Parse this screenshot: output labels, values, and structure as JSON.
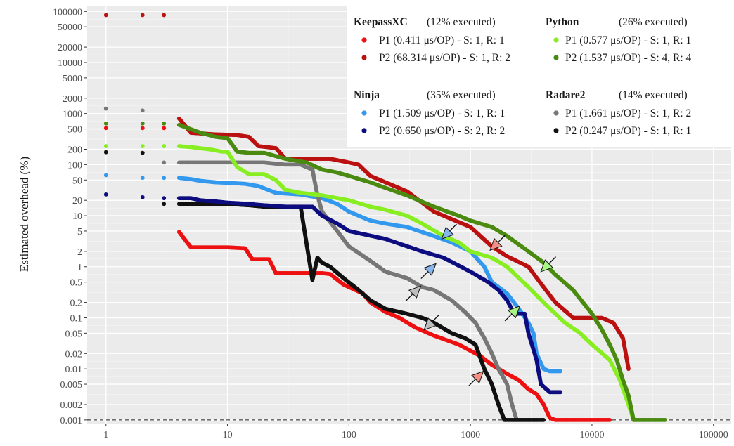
{
  "chart_data": {
    "type": "scatter",
    "title": "",
    "xlabel": "",
    "ylabel": "Estimated overhead (%)",
    "x_scale": "log",
    "y_scale": "log",
    "xlim": [
      0.7,
      140000
    ],
    "ylim": [
      0.00085,
      130000
    ],
    "grid": true,
    "legend_position": "top-right",
    "x_ticks": [
      1,
      10,
      100,
      1000,
      10000,
      100000
    ],
    "x_tick_labels": [
      "1",
      "10",
      "100",
      "1000",
      "10000",
      "100000"
    ],
    "y_ticks": [
      100000,
      50000,
      20000,
      10000,
      5000,
      2000,
      1000,
      500,
      200,
      100,
      50,
      20,
      10,
      5,
      2,
      1,
      0.5,
      0.2,
      0.1,
      0.05,
      0.02,
      0.01,
      0.005,
      0.002,
      0.001
    ],
    "y_tick_labels": [
      "100000",
      "50000",
      "20000",
      "10000",
      "5000",
      "2000",
      "1000",
      "500",
      "200",
      "100",
      "50",
      "20",
      "10",
      "5",
      "2",
      "1",
      "0.5",
      "0.2",
      "0.1",
      "0.05",
      "0.02",
      "0.01",
      "0.005",
      "0.002",
      "0.001"
    ],
    "reference_line": {
      "y": 0.001,
      "style": "dashed"
    },
    "groups": [
      {
        "title": "KeepassXC",
        "executed": "(12% executed)",
        "items": [
          {
            "label": "P1 (0.411 μs/OP) - S: 1, R: 1",
            "series": 0
          },
          {
            "label": "P2 (68.314 μs/OP) - S: 1, R: 2",
            "series": 1
          }
        ]
      },
      {
        "title": "Python",
        "executed": "(26% executed)",
        "items": [
          {
            "label": "P1 (0.577 μs/OP) - S: 1, R: 1",
            "series": 2
          },
          {
            "label": "P2 (1.537 μs/OP) - S: 4, R: 4",
            "series": 3
          }
        ]
      },
      {
        "title": "Ninja",
        "executed": "(35% executed)",
        "items": [
          {
            "label": "P1 (1.509 μs/OP) - S: 1, R: 1",
            "series": 4
          },
          {
            "label": "P2 (0.650 μs/OP) - S: 2, R: 2",
            "series": 5
          }
        ]
      },
      {
        "title": "Radare2",
        "executed": "(14% executed)",
        "items": [
          {
            "label": "P1 (1.661 μs/OP) - S: 1, R: 2",
            "series": 6
          },
          {
            "label": "P2 (0.247 μs/OP) - S: 1, R: 1",
            "series": 7
          }
        ]
      }
    ],
    "series": [
      {
        "color": "#ee1111",
        "points": [
          [
            1,
            520
          ],
          [
            2,
            520
          ],
          [
            3,
            520
          ],
          [
            4,
            4.8
          ],
          [
            5,
            2.4
          ],
          [
            6,
            2.4
          ],
          [
            8,
            2.4
          ],
          [
            10,
            2.4
          ],
          [
            14,
            2.3
          ],
          [
            16,
            1.4
          ],
          [
            22,
            1.4
          ],
          [
            25,
            0.75
          ],
          [
            45,
            0.75
          ],
          [
            60,
            0.75
          ],
          [
            70,
            0.72
          ],
          [
            90,
            0.45
          ],
          [
            130,
            0.3
          ],
          [
            150,
            0.2
          ],
          [
            200,
            0.13
          ],
          [
            260,
            0.1
          ],
          [
            350,
            0.065
          ],
          [
            500,
            0.045
          ],
          [
            800,
            0.03
          ],
          [
            1200,
            0.018
          ],
          [
            1500,
            0.012
          ],
          [
            2000,
            0.008
          ],
          [
            2500,
            0.006
          ],
          [
            3000,
            0.004
          ],
          [
            3500,
            0.0032
          ],
          [
            4000,
            0.002
          ],
          [
            4500,
            0.0011
          ],
          [
            5000,
            0.001
          ],
          [
            8000,
            0.001
          ],
          [
            14000,
            0.001
          ]
        ]
      },
      {
        "color": "#bb1111",
        "points": [
          [
            1,
            85000
          ],
          [
            2,
            85000
          ],
          [
            3,
            85000
          ],
          [
            4,
            800
          ],
          [
            5,
            420
          ],
          [
            8,
            390
          ],
          [
            12,
            380
          ],
          [
            15,
            350
          ],
          [
            18,
            230
          ],
          [
            25,
            210
          ],
          [
            30,
            130
          ],
          [
            45,
            130
          ],
          [
            70,
            130
          ],
          [
            100,
            110
          ],
          [
            120,
            100
          ],
          [
            150,
            60
          ],
          [
            200,
            45
          ],
          [
            300,
            30
          ],
          [
            500,
            12
          ],
          [
            1000,
            6
          ],
          [
            1500,
            2.5
          ],
          [
            2000,
            1.6
          ],
          [
            3000,
            1
          ],
          [
            4000,
            0.4
          ],
          [
            5000,
            0.2
          ],
          [
            7000,
            0.1
          ],
          [
            9000,
            0.1
          ],
          [
            12000,
            0.1
          ],
          [
            15000,
            0.08
          ],
          [
            18000,
            0.04
          ],
          [
            20000,
            0.01
          ]
        ]
      },
      {
        "color": "#88ee22",
        "points": [
          [
            1,
            230
          ],
          [
            2,
            230
          ],
          [
            3,
            230
          ],
          [
            4,
            230
          ],
          [
            5,
            220
          ],
          [
            7,
            200
          ],
          [
            9,
            180
          ],
          [
            10,
            180
          ],
          [
            12,
            90
          ],
          [
            15,
            65
          ],
          [
            20,
            65
          ],
          [
            25,
            50
          ],
          [
            30,
            32
          ],
          [
            40,
            28
          ],
          [
            60,
            25
          ],
          [
            100,
            20
          ],
          [
            150,
            15
          ],
          [
            200,
            13
          ],
          [
            300,
            10
          ],
          [
            400,
            7
          ],
          [
            600,
            4
          ],
          [
            800,
            3
          ],
          [
            1000,
            2
          ],
          [
            1500,
            1.5
          ],
          [
            2000,
            1
          ],
          [
            3000,
            0.4
          ],
          [
            4000,
            0.2
          ],
          [
            5000,
            0.12
          ],
          [
            6000,
            0.08
          ],
          [
            8000,
            0.05
          ],
          [
            10000,
            0.03
          ],
          [
            14000,
            0.015
          ],
          [
            17000,
            0.006
          ],
          [
            20000,
            0.002
          ],
          [
            22000,
            0.001
          ]
        ]
      },
      {
        "color": "#4a8a10",
        "points": [
          [
            1,
            640
          ],
          [
            2,
            640
          ],
          [
            3,
            640
          ],
          [
            4,
            600
          ],
          [
            6,
            420
          ],
          [
            8,
            350
          ],
          [
            10,
            330
          ],
          [
            12,
            180
          ],
          [
            15,
            170
          ],
          [
            20,
            170
          ],
          [
            30,
            130
          ],
          [
            45,
            110
          ],
          [
            60,
            80
          ],
          [
            80,
            70
          ],
          [
            100,
            60
          ],
          [
            150,
            45
          ],
          [
            200,
            35
          ],
          [
            300,
            25
          ],
          [
            500,
            15
          ],
          [
            800,
            10
          ],
          [
            1000,
            8
          ],
          [
            1500,
            6
          ],
          [
            2000,
            4
          ],
          [
            3000,
            2
          ],
          [
            4000,
            1.2
          ],
          [
            5000,
            0.7
          ],
          [
            7000,
            0.35
          ],
          [
            10000,
            0.12
          ],
          [
            12000,
            0.06
          ],
          [
            14000,
            0.03
          ],
          [
            16000,
            0.015
          ],
          [
            18000,
            0.006
          ],
          [
            20000,
            0.003
          ],
          [
            22000,
            0.001
          ],
          [
            30000,
            0.001
          ],
          [
            40000,
            0.001
          ]
        ]
      },
      {
        "color": "#3399ee",
        "points": [
          [
            1,
            62
          ],
          [
            2,
            55
          ],
          [
            3,
            55
          ],
          [
            4,
            55
          ],
          [
            5,
            52
          ],
          [
            6,
            48
          ],
          [
            8,
            45
          ],
          [
            10,
            44
          ],
          [
            14,
            42
          ],
          [
            18,
            38
          ],
          [
            25,
            28
          ],
          [
            40,
            26
          ],
          [
            60,
            22
          ],
          [
            80,
            17
          ],
          [
            100,
            12
          ],
          [
            150,
            8
          ],
          [
            200,
            7
          ],
          [
            300,
            6
          ],
          [
            500,
            4
          ],
          [
            700,
            3
          ],
          [
            1000,
            2
          ],
          [
            1300,
            1
          ],
          [
            1500,
            0.5
          ],
          [
            2000,
            0.3
          ],
          [
            2500,
            0.15
          ],
          [
            3000,
            0.08
          ],
          [
            3300,
            0.05
          ],
          [
            3500,
            0.02
          ],
          [
            4000,
            0.01
          ],
          [
            4500,
            0.009
          ],
          [
            5500,
            0.009
          ]
        ]
      },
      {
        "color": "#0d0d80",
        "points": [
          [
            1,
            26
          ],
          [
            2,
            23
          ],
          [
            3,
            22
          ],
          [
            4,
            22
          ],
          [
            5,
            22
          ],
          [
            6,
            20
          ],
          [
            8,
            19
          ],
          [
            10,
            18
          ],
          [
            15,
            17
          ],
          [
            20,
            16
          ],
          [
            30,
            15
          ],
          [
            50,
            15
          ],
          [
            60,
            10
          ],
          [
            80,
            7
          ],
          [
            100,
            5
          ],
          [
            200,
            3.5
          ],
          [
            400,
            2
          ],
          [
            600,
            1.5
          ],
          [
            1000,
            0.8
          ],
          [
            1400,
            0.5
          ],
          [
            1700,
            0.35
          ],
          [
            2000,
            0.22
          ],
          [
            2300,
            0.12
          ],
          [
            2800,
            0.12
          ],
          [
            3000,
            0.05
          ],
          [
            3500,
            0.015
          ],
          [
            3800,
            0.005
          ],
          [
            4500,
            0.0035
          ],
          [
            5500,
            0.0035
          ]
        ]
      },
      {
        "color": "#777777",
        "points": [
          [
            1,
            1250
          ],
          [
            2,
            1150
          ],
          [
            3,
            110
          ],
          [
            4,
            110
          ],
          [
            5,
            110
          ],
          [
            6,
            110
          ],
          [
            10,
            110
          ],
          [
            20,
            110
          ],
          [
            30,
            100
          ],
          [
            40,
            100
          ],
          [
            50,
            80
          ],
          [
            55,
            25
          ],
          [
            60,
            12
          ],
          [
            80,
            5
          ],
          [
            100,
            2.5
          ],
          [
            150,
            1.3
          ],
          [
            200,
            0.8
          ],
          [
            300,
            0.6
          ],
          [
            400,
            0.4
          ],
          [
            500,
            0.35
          ],
          [
            700,
            0.22
          ],
          [
            900,
            0.13
          ],
          [
            1100,
            0.08
          ],
          [
            1300,
            0.04
          ],
          [
            1500,
            0.02
          ],
          [
            1700,
            0.01
          ],
          [
            2000,
            0.005
          ],
          [
            2200,
            0.002
          ],
          [
            2400,
            0.001
          ]
        ]
      },
      {
        "color": "#111111",
        "points": [
          [
            1,
            175
          ],
          [
            2,
            170
          ],
          [
            3,
            17
          ],
          [
            4,
            17
          ],
          [
            5,
            17
          ],
          [
            6,
            17
          ],
          [
            8,
            17
          ],
          [
            10,
            17
          ],
          [
            15,
            16
          ],
          [
            20,
            15
          ],
          [
            30,
            15
          ],
          [
            40,
            15
          ],
          [
            50,
            0.55
          ],
          [
            55,
            1.5
          ],
          [
            60,
            1.2
          ],
          [
            70,
            1
          ],
          [
            90,
            0.6
          ],
          [
            120,
            0.35
          ],
          [
            150,
            0.22
          ],
          [
            200,
            0.15
          ],
          [
            300,
            0.12
          ],
          [
            400,
            0.1
          ],
          [
            500,
            0.08
          ],
          [
            700,
            0.05
          ],
          [
            900,
            0.04
          ],
          [
            1100,
            0.03
          ],
          [
            1300,
            0.01
          ],
          [
            1500,
            0.005
          ],
          [
            1700,
            0.002
          ],
          [
            1900,
            0.001
          ],
          [
            3000,
            0.001
          ],
          [
            4000,
            0.001
          ]
        ]
      }
    ],
    "annotations": [
      {
        "type": "arrow",
        "color": "#f48f84",
        "x": 1280,
        "y": 0.009,
        "direction": "from-lower-left"
      },
      {
        "type": "arrow",
        "color": "#f48f84",
        "x": 1450,
        "y": 2.1,
        "direction": "from-upper-right"
      },
      {
        "type": "arrow",
        "color": "#a7f583",
        "x": 2550,
        "y": 0.17,
        "direction": "from-lower-left"
      },
      {
        "type": "arrow",
        "color": "#a7f583",
        "x": 3800,
        "y": 0.8,
        "direction": "from-upper-right"
      },
      {
        "type": "arrow",
        "color": "#87b6ec",
        "x": 580,
        "y": 3.5,
        "direction": "from-upper-right"
      },
      {
        "type": "arrow",
        "color": "#87b6ec",
        "x": 520,
        "y": 1.15,
        "direction": "from-lower-left"
      },
      {
        "type": "arrow",
        "color": "#bdbdbd",
        "x": 390,
        "y": 0.42,
        "direction": "from-lower-left"
      },
      {
        "type": "arrow",
        "color": "#bdbdbd",
        "x": 415,
        "y": 0.058,
        "direction": "from-upper-right"
      }
    ]
  }
}
